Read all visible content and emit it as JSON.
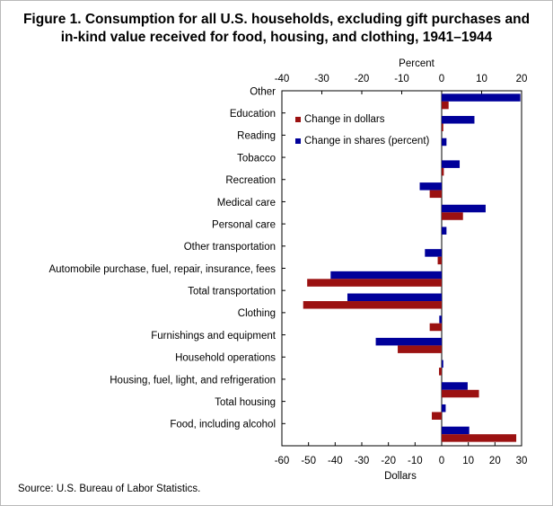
{
  "title_line1": "Figure 1. Consumption for all U.S. households, excluding gift purchases and",
  "title_line2": "in-kind value received for food, housing, and clothing, 1941–1944",
  "source": "Source:  U.S. Bureau  of Labor Statistics.",
  "chart_data": {
    "type": "bar",
    "orientation": "horizontal",
    "categories": [
      "Other",
      "Education",
      "Reading",
      "Tobacco",
      "Recreation",
      "Medical care",
      "Personal care",
      "Other transportation",
      "Automobile purchase, fuel, repair, insurance, fees",
      "Total transportation",
      "Clothing",
      "Furnishings and equipment",
      "Household operations",
      "Housing, fuel, light, and refrigeration",
      "Total housing",
      "Food, including alcohol"
    ],
    "series": [
      {
        "name": "Change in shares (percent)",
        "color": "#00009a",
        "axis": "top",
        "values": [
          19.7,
          8.2,
          1.2,
          4.5,
          -5.5,
          11.0,
          1.2,
          -4.2,
          -27.8,
          -23.6,
          -0.6,
          -16.5,
          0.4,
          6.5,
          1.0,
          6.9
        ]
      },
      {
        "name": "Change in dollars",
        "color": "#9b1111",
        "axis": "bottom",
        "values": [
          2.6,
          0.6,
          0.0,
          0.8,
          -4.5,
          8.0,
          0.0,
          -1.5,
          -50.5,
          -52.0,
          -4.5,
          -16.5,
          -1.0,
          14.0,
          -3.7,
          28.0
        ]
      }
    ],
    "legend": [
      "Change in dollars",
      "Change in shares (percent)"
    ],
    "legend_position": "top-left inside plot",
    "x_top": {
      "label": "Percent",
      "range": [
        -40,
        20
      ],
      "ticks": [
        "-40",
        "-30",
        "-20",
        "-10",
        "0",
        "10",
        "20"
      ]
    },
    "x_bottom": {
      "label": "Dollars",
      "range": [
        -60,
        30
      ],
      "ticks": [
        "-60",
        "-50",
        "-40",
        "-30",
        "-20",
        "-10",
        "0",
        "10",
        "20",
        "30"
      ]
    },
    "grid": false
  }
}
